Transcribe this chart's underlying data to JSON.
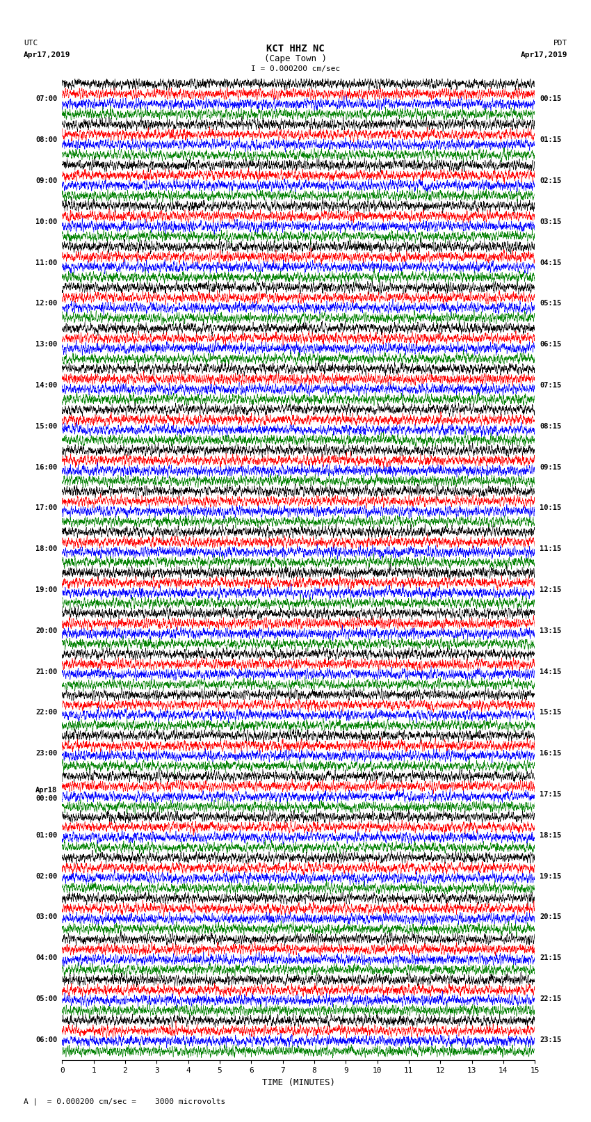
{
  "title_line1": "KCT HHZ NC",
  "title_line2": "(Cape Town )",
  "title_scale": "I = 0.000200 cm/sec",
  "left_label_top": "UTC",
  "left_label_date": "Apr17,2019",
  "right_label_top": "PDT",
  "right_label_date": "Apr17,2019",
  "bottom_label": "TIME (MINUTES)",
  "bottom_note": "= 0.000200 cm/sec =    3000 microvolts",
  "xlabel_ticks": [
    0,
    1,
    2,
    3,
    4,
    5,
    6,
    7,
    8,
    9,
    10,
    11,
    12,
    13,
    14,
    15
  ],
  "left_times": [
    "07:00",
    "08:00",
    "09:00",
    "10:00",
    "11:00",
    "12:00",
    "13:00",
    "14:00",
    "15:00",
    "16:00",
    "17:00",
    "18:00",
    "19:00",
    "20:00",
    "21:00",
    "22:00",
    "23:00",
    "Apr18\n00:00",
    "01:00",
    "02:00",
    "03:00",
    "04:00",
    "05:00",
    "06:00"
  ],
  "right_times": [
    "00:15",
    "01:15",
    "02:15",
    "03:15",
    "04:15",
    "05:15",
    "06:15",
    "07:15",
    "08:15",
    "09:15",
    "10:15",
    "11:15",
    "12:15",
    "13:15",
    "14:15",
    "15:15",
    "16:15",
    "17:15",
    "18:15",
    "19:15",
    "20:15",
    "21:15",
    "22:15",
    "23:15"
  ],
  "n_rows": 24,
  "n_cols": 3000,
  "trace_colors": [
    "black",
    "red",
    "blue",
    "green"
  ],
  "sub_band_offsets": [
    0.875,
    0.625,
    0.375,
    0.125
  ],
  "sub_band_amplitude": 0.13,
  "bg_color": "white",
  "fig_width": 8.5,
  "fig_height": 16.13,
  "dpi": 100
}
